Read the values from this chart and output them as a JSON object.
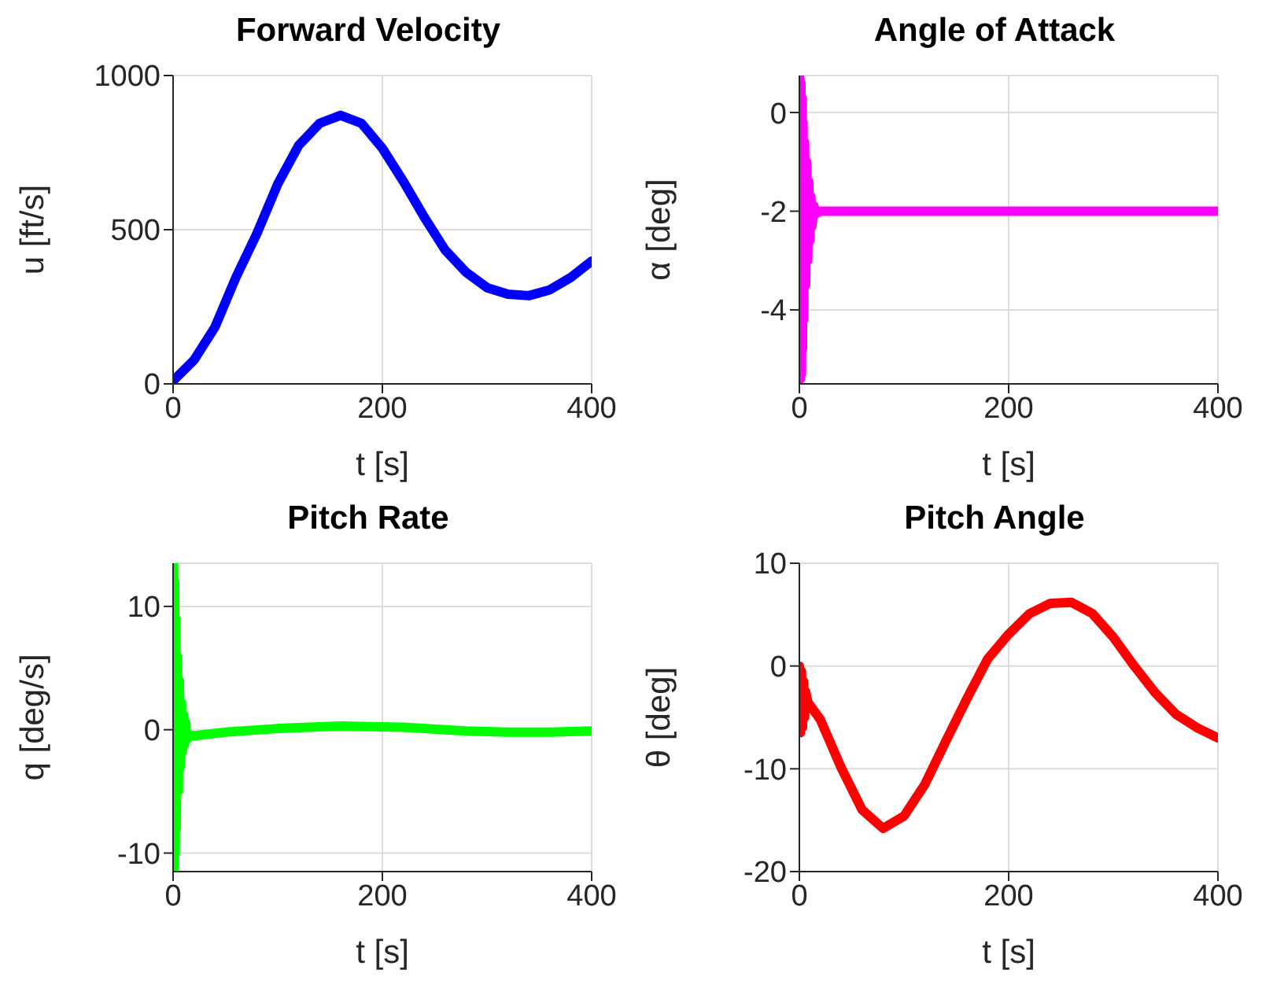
{
  "chart_data": [
    {
      "type": "line",
      "title": "Forward Velocity",
      "xlabel": "t [s]",
      "ylabel": "u [ft/s]",
      "xlim": [
        0,
        400
      ],
      "ylim": [
        0,
        1000
      ],
      "xticks": [
        0,
        200,
        400
      ],
      "yticks": [
        0,
        500,
        1000
      ],
      "grid": true,
      "series": [
        {
          "color": "#0000ff",
          "x": [
            0,
            20,
            40,
            60,
            80,
            100,
            120,
            140,
            160,
            180,
            200,
            220,
            240,
            260,
            280,
            300,
            320,
            340,
            360,
            380,
            400
          ],
          "values": [
            10,
            77,
            184,
            345,
            487,
            648,
            773,
            845,
            871,
            845,
            764,
            657,
            541,
            434,
            362,
            312,
            291,
            286,
            305,
            345,
            398
          ]
        }
      ]
    },
    {
      "type": "line",
      "title": "Angle of Attack",
      "xlabel": "t [s]",
      "ylabel": "α [deg]",
      "xlim": [
        0,
        400
      ],
      "ylim": [
        -5.5,
        0.75
      ],
      "xticks": [
        0,
        200,
        400
      ],
      "yticks": [
        -4,
        -2,
        0
      ],
      "grid": true,
      "series": [
        {
          "color": "#ff00ff",
          "x": [
            0,
            0.5,
            1,
            1.5,
            2,
            2.5,
            3,
            3.5,
            4,
            5,
            6,
            7,
            8,
            9,
            10,
            11,
            12,
            14,
            16,
            20,
            100,
            200,
            300,
            400
          ],
          "values": [
            -2,
            0.7,
            -5.4,
            0.6,
            -5.3,
            0.3,
            -4.8,
            -0.2,
            -4.2,
            -0.6,
            -3.5,
            -1.0,
            -3.0,
            -1.4,
            -2.6,
            -1.7,
            -2.3,
            -1.9,
            -2.05,
            -2,
            -2,
            -2,
            -2,
            -2
          ]
        }
      ]
    },
    {
      "type": "line",
      "title": "Pitch Rate",
      "xlabel": "t [s]",
      "ylabel": "q [deg/s]",
      "xlim": [
        0,
        400
      ],
      "ylim": [
        -11.5,
        13.5
      ],
      "xticks": [
        0,
        200,
        400
      ],
      "yticks": [
        -10,
        0,
        10
      ],
      "grid": true,
      "series": [
        {
          "color": "#00ff00",
          "x": [
            0,
            0.5,
            1,
            1.5,
            2,
            2.5,
            3,
            4,
            5,
            6,
            7,
            8,
            9,
            10,
            11,
            12,
            13,
            15,
            20,
            50,
            100,
            160,
            220,
            280,
            320,
            360,
            400
          ],
          "values": [
            0,
            13.4,
            -11.4,
            12,
            -10,
            9,
            -8,
            6,
            -5,
            4,
            -3,
            2.2,
            -1.8,
            1.2,
            -1.2,
            0.6,
            -0.8,
            -0.4,
            -0.5,
            -0.2,
            0.1,
            0.3,
            0.2,
            -0.1,
            -0.2,
            -0.2,
            -0.1
          ]
        }
      ]
    },
    {
      "type": "line",
      "title": "Pitch Angle",
      "xlabel": "t [s]",
      "ylabel": "θ [deg]",
      "xlim": [
        0,
        400
      ],
      "ylim": [
        -20,
        10
      ],
      "xticks": [
        0,
        200,
        400
      ],
      "yticks": [
        -20,
        -10,
        0,
        10
      ],
      "grid": true,
      "series": [
        {
          "color": "#ff0000",
          "x": [
            0,
            1,
            2,
            3,
            4,
            5,
            6,
            8,
            10,
            20,
            40,
            60,
            80,
            100,
            120,
            140,
            160,
            180,
            200,
            220,
            240,
            260,
            280,
            300,
            320,
            340,
            360,
            380,
            400
          ],
          "values": [
            0,
            -6.5,
            -0.5,
            -6,
            -1.5,
            -5,
            -2.5,
            -3.5,
            -3.8,
            -5.2,
            -9.9,
            -14,
            -15.8,
            -14.6,
            -11.5,
            -7.3,
            -3.2,
            0.7,
            3.1,
            5.1,
            6.1,
            6.2,
            5.1,
            2.8,
            0,
            -2.6,
            -4.7,
            -6,
            -7
          ]
        }
      ]
    }
  ]
}
